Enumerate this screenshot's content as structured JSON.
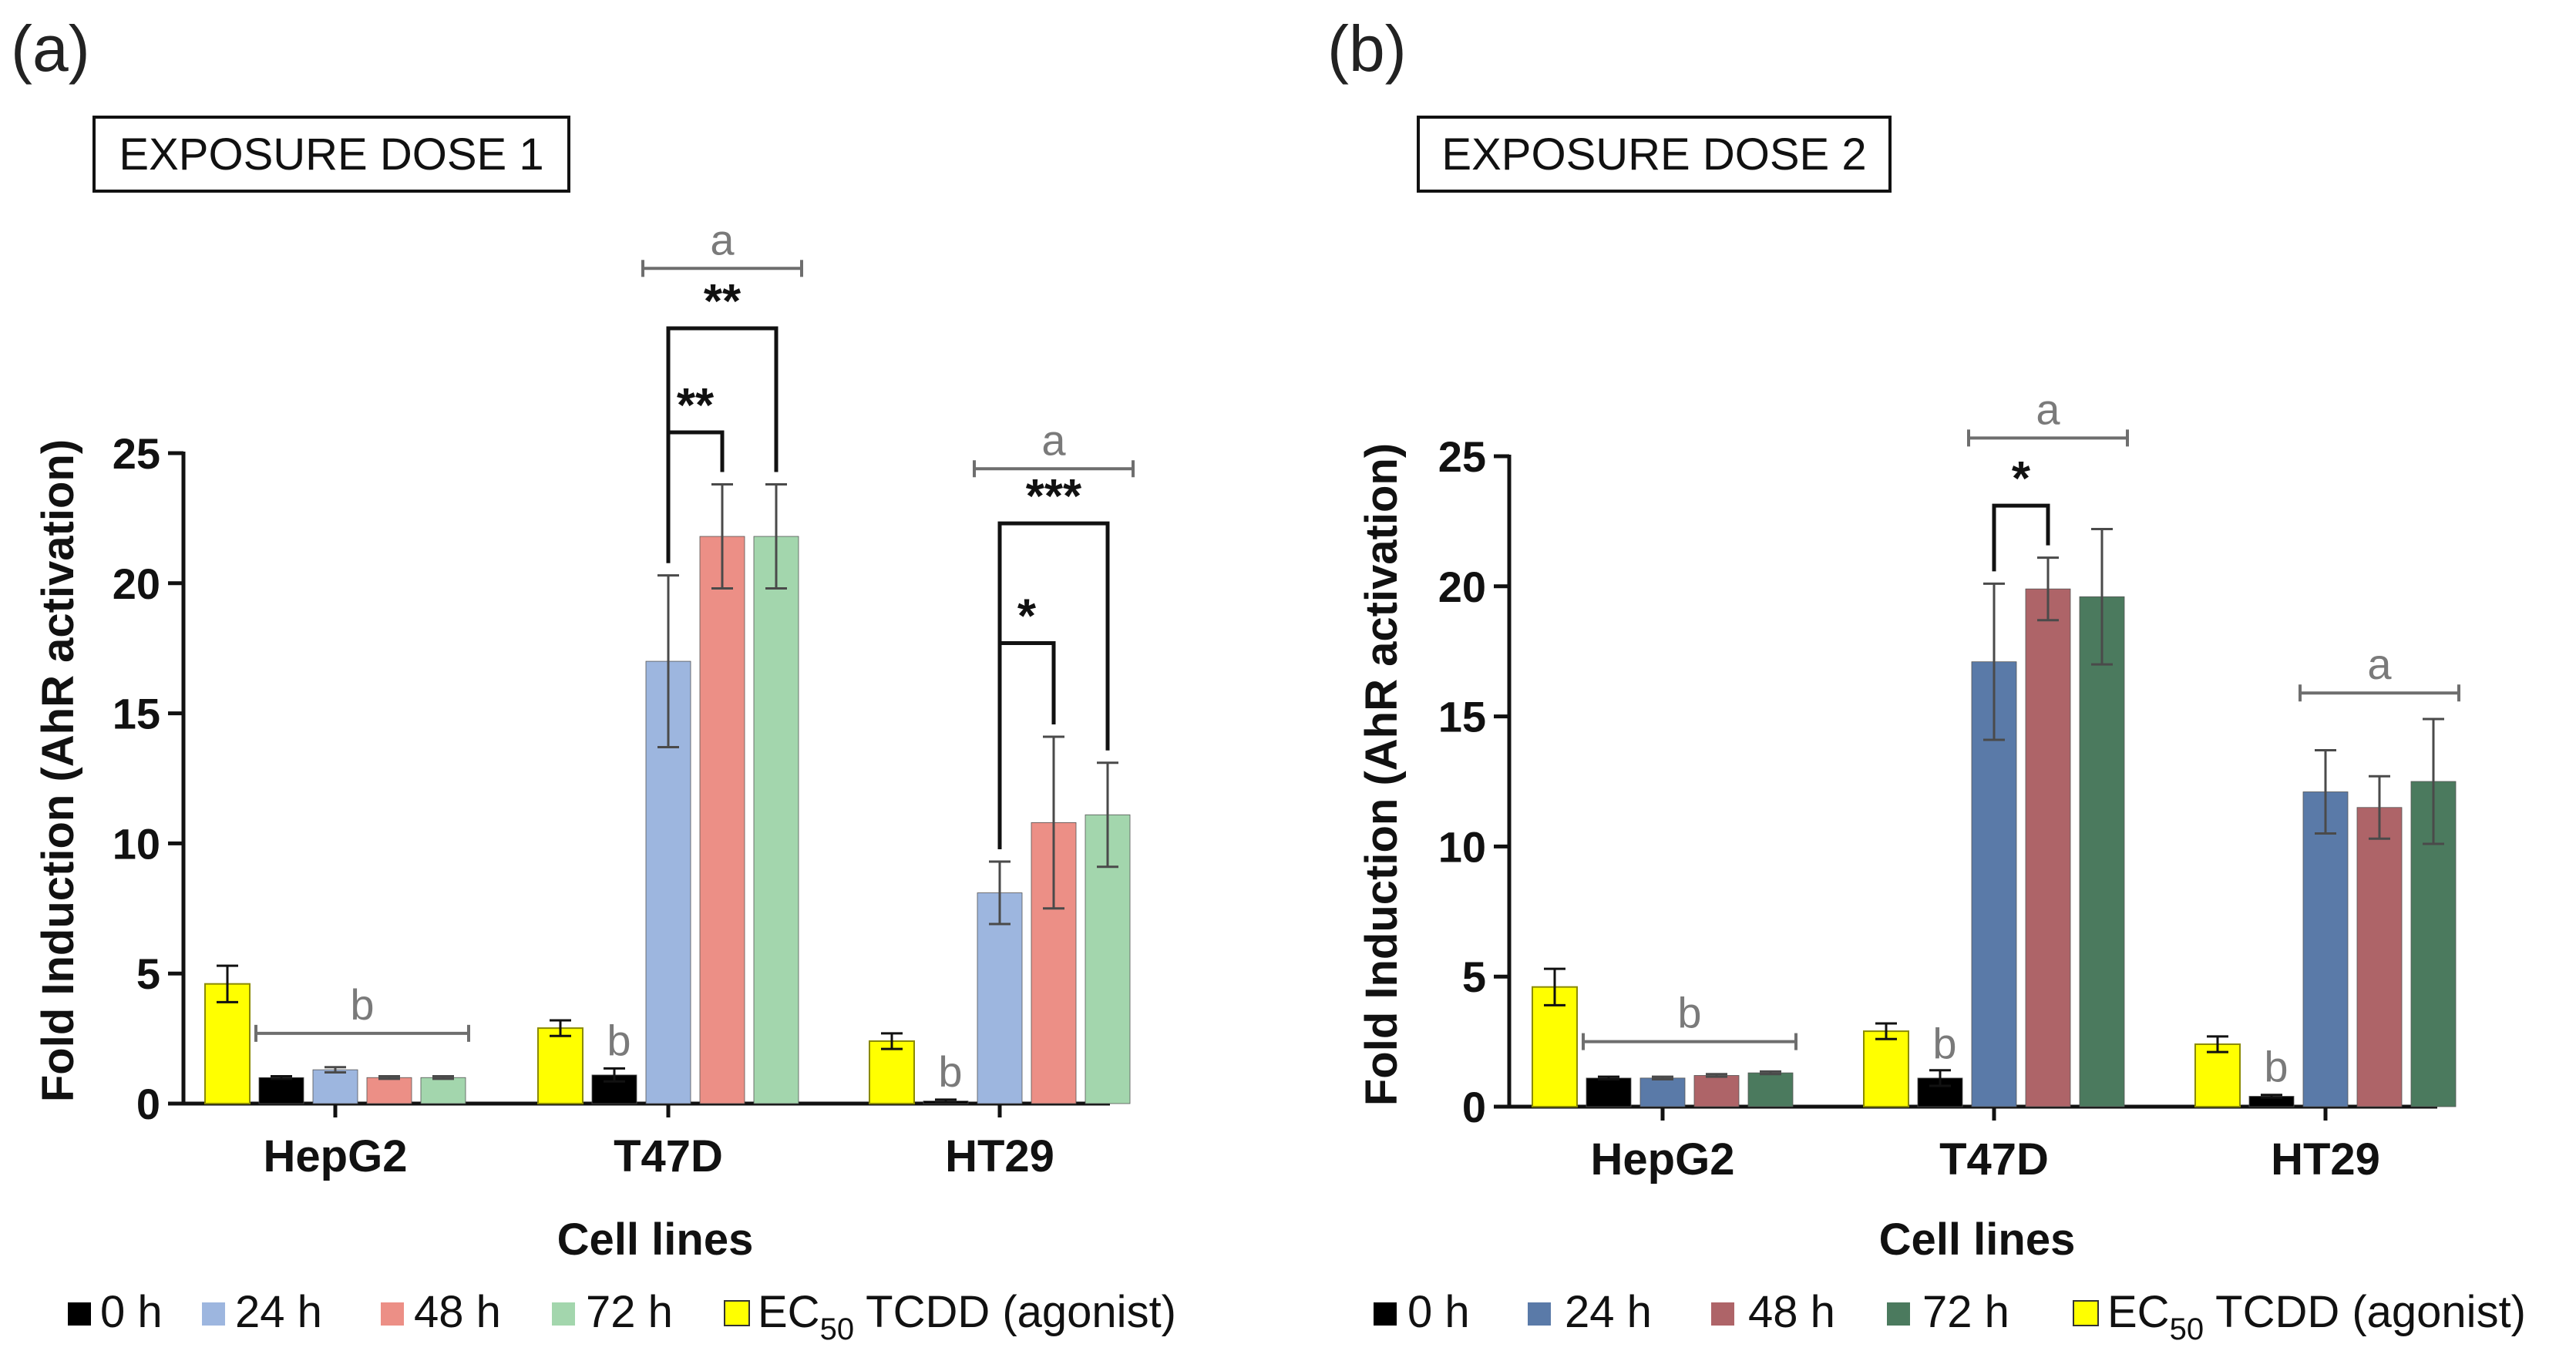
{
  "chart_data": [
    {
      "type": "bar",
      "panel_label": "(a)",
      "title": "EXPOSURE DOSE 1",
      "xlabel": "Cell lines",
      "ylabel": "Fold Induction (AhR activation)",
      "ylim": [
        0,
        25
      ],
      "yticks": [
        "0",
        "5",
        "10",
        "15",
        "20",
        "25"
      ],
      "categories": [
        "HepG2",
        "T47D",
        "HT29"
      ],
      "series": [
        {
          "name": "EC50 TCDD (agonist)",
          "color": "#ffff00",
          "values": [
            4.6,
            2.9,
            2.4
          ],
          "errors": [
            0.7,
            0.3,
            0.3
          ]
        },
        {
          "name": "0 h",
          "color": "#000000",
          "values": [
            1.0,
            1.1,
            0.1
          ],
          "errors": [
            0.05,
            0.25,
            0.05
          ]
        },
        {
          "name": "24 h",
          "color": "#9db6df",
          "values": [
            1.3,
            17.0,
            8.1
          ],
          "errors": [
            0.1,
            3.3,
            1.2
          ]
        },
        {
          "name": "48 h",
          "color": "#ec8f86",
          "values": [
            1.0,
            21.8,
            10.8
          ],
          "errors": [
            0.05,
            2.0,
            3.3
          ]
        },
        {
          "name": "72 h",
          "color": "#a3d6ad",
          "values": [
            1.0,
            21.8,
            11.1
          ],
          "errors": [
            0.05,
            2.0,
            2.0
          ]
        }
      ],
      "annotations": {
        "range_brackets": [
          {
            "category": 0,
            "from_series": 1,
            "to_series": 4,
            "y": 2.7,
            "label": "b"
          },
          {
            "category": 1,
            "from_series": 2,
            "to_series": 4,
            "y": 32.1,
            "label": "a"
          },
          {
            "category": 2,
            "from_series": 2,
            "to_series": 4,
            "y": 24.4,
            "label": "a"
          }
        ],
        "single_letters": [
          {
            "category": 1,
            "series": 1,
            "y": 1.5,
            "label": "b"
          },
          {
            "category": 2,
            "series": 1,
            "y": 0.3,
            "label": "b"
          }
        ],
        "significance": [
          {
            "category": 1,
            "from_series": 2,
            "to_series": 3,
            "top_y": 25.8,
            "label": "**"
          },
          {
            "category": 1,
            "from_series": 2,
            "to_series": 4,
            "top_y": 29.8,
            "label": "**"
          },
          {
            "category": 2,
            "from_series": 2,
            "to_series": 3,
            "top_y": 17.7,
            "label": "*"
          },
          {
            "category": 2,
            "from_series": 2,
            "to_series": 4,
            "top_y": 22.3,
            "label": "***"
          }
        ]
      }
    },
    {
      "type": "bar",
      "panel_label": "(b)",
      "title": "EXPOSURE DOSE 2",
      "xlabel": "Cell lines",
      "ylabel": "Fold Induction (AhR activation)",
      "ylim": [
        0,
        25
      ],
      "yticks": [
        "0",
        "5",
        "10",
        "15",
        "20",
        "25"
      ],
      "categories": [
        "HepG2",
        "T47D",
        "HT29"
      ],
      "series": [
        {
          "name": "EC50 TCDD (agonist)",
          "color": "#ffff00",
          "values": [
            4.6,
            2.9,
            2.4
          ],
          "errors": [
            0.7,
            0.3,
            0.3
          ]
        },
        {
          "name": "0 h",
          "color": "#000000",
          "values": [
            1.1,
            1.1,
            0.4
          ],
          "errors": [
            0.05,
            0.3,
            0.05
          ]
        },
        {
          "name": "24 h",
          "color": "#5a7aa8",
          "values": [
            1.1,
            17.1,
            12.1
          ],
          "errors": [
            0.05,
            3.0,
            1.6
          ]
        },
        {
          "name": "48 h",
          "color": "#ae6468",
          "values": [
            1.2,
            19.9,
            11.5
          ],
          "errors": [
            0.05,
            1.2,
            1.2
          ]
        },
        {
          "name": "72 h",
          "color": "#4b7a5e",
          "values": [
            1.3,
            19.6,
            12.5
          ],
          "errors": [
            0.05,
            2.6,
            2.4
          ]
        }
      ],
      "annotations": {
        "range_brackets": [
          {
            "category": 0,
            "from_series": 1,
            "to_series": 4,
            "y": 2.5,
            "label": "b"
          },
          {
            "category": 1,
            "from_series": 2,
            "to_series": 4,
            "y": 25.7,
            "label": "a"
          },
          {
            "category": 2,
            "from_series": 2,
            "to_series": 4,
            "y": 15.9,
            "label": "a"
          }
        ],
        "single_letters": [
          {
            "category": 1,
            "series": 1,
            "y": 1.5,
            "label": "b"
          },
          {
            "category": 2,
            "series": 1,
            "y": 0.6,
            "label": "b"
          }
        ],
        "significance": [
          {
            "category": 1,
            "from_series": 2,
            "to_series": 3,
            "top_y": 23.1,
            "label": "*"
          }
        ]
      }
    }
  ],
  "legend_a": {
    "items": [
      {
        "label": "0 h",
        "color": "#000000"
      },
      {
        "label": "24 h",
        "color": "#9db6df"
      },
      {
        "label": "48 h",
        "color": "#ec8f86"
      },
      {
        "label": "72 h",
        "color": "#a3d6ad"
      }
    ],
    "agonist": {
      "prefix": "EC",
      "sub": "50",
      "suffix": " TCDD (agonist)",
      "color": "#ffff00"
    }
  },
  "legend_b": {
    "items": [
      {
        "label": "0 h",
        "color": "#000000"
      },
      {
        "label": "24 h",
        "color": "#5a7aa8"
      },
      {
        "label": "48 h",
        "color": "#ae6468"
      },
      {
        "label": "72 h",
        "color": "#4b7a5e"
      }
    ],
    "agonist": {
      "prefix": "EC",
      "sub": "50",
      "suffix": " TCDD (agonist)",
      "color": "#ffff00"
    }
  }
}
